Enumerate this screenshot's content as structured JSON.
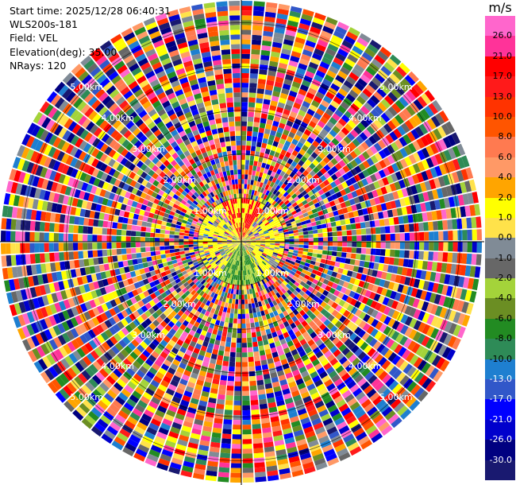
{
  "info": {
    "start_time": "Start time: 2025/12/28 06:40:31",
    "station": "WLS200s-181",
    "field": "Field: VEL",
    "elevation": "Elevation(deg): 35.00",
    "nrays": "NRays: 120"
  },
  "chart_data": {
    "type": "heatmap",
    "projection": "polar-ppi",
    "field": "VEL",
    "nrays": 120,
    "elevation_deg": 35.0,
    "range_rings_km": [
      1.0,
      2.0,
      3.0,
      4.0,
      5.0
    ],
    "ring_labels": [
      "1.00km",
      "2.00km",
      "3.00km",
      "4.00km",
      "5.00km"
    ],
    "max_range_km": 5.5,
    "grid": true,
    "colorbar": {
      "unit": "m/s",
      "ticks": [
        "26.0",
        "21.0",
        "17.0",
        "13.0",
        "10.0",
        "8.0",
        "6.0",
        "4.0",
        "2.0",
        "1.0",
        "0.0",
        "-1.0",
        "-2.0",
        "-4.0",
        "-6.0",
        "-8.0",
        "-10.0",
        "-13.0",
        "-17.0",
        "-21.0",
        "-26.0",
        "-30.0"
      ],
      "colors": [
        "#ff66cc",
        "#ff3399",
        "#ff0000",
        "#ff1a1a",
        "#ff3300",
        "#ff5500",
        "#ff7a50",
        "#ff9966",
        "#ffa500",
        "#ffff00",
        "#ffe24a",
        "#808b96",
        "#676767",
        "#a4d33a",
        "#6b8e23",
        "#228b22",
        "#2e8b57",
        "#1e7fd0",
        "#3157c9",
        "#0000ff",
        "#0000cc",
        "#000080",
        "#191970"
      ]
    }
  }
}
